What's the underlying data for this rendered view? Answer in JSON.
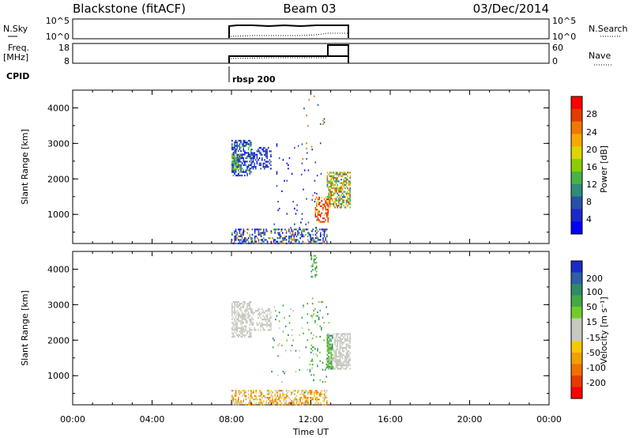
{
  "header": {
    "station": "Blackstone (fitACF)",
    "beam": "Beam 03",
    "date": "03/Dec/2014"
  },
  "noise_panel": {
    "left_label": "N.Sky",
    "right_label": "N.Search",
    "left_ticks": [
      "10^5",
      "10^0"
    ],
    "right_ticks": [
      "10^5",
      "10^0"
    ]
  },
  "freq_panel": {
    "left_label_1": "Freq.",
    "left_label_2": "[MHz]",
    "right_label": "Nave",
    "left_ticks": [
      "18",
      "8"
    ],
    "right_ticks": [
      "60",
      "0"
    ]
  },
  "cpid": {
    "label": "CPID",
    "program": "rbsp 200"
  },
  "power_panel": {
    "ylabel": "Slant Range [km]",
    "yticks": [
      "4000",
      "3000",
      "2000",
      "1000"
    ],
    "colorbar_label": "Power [dB]",
    "colorbar_ticks": [
      "28",
      "24",
      "20",
      "16",
      "12",
      "8",
      "4"
    ],
    "colorbar_colors": [
      "#ff0000",
      "#e33b00",
      "#f07800",
      "#f6a800",
      "#dcd600",
      "#8ccc00",
      "#48b248",
      "#2e8c78",
      "#2850a8",
      "#1d28c8",
      "#0000ff"
    ]
  },
  "velocity_panel": {
    "ylabel": "Slant Range [km]",
    "yticks": [
      "4000",
      "3000",
      "2000",
      "1000"
    ],
    "colorbar_label": "Velocity [m s⁻¹]",
    "colorbar_ticks": [
      "200",
      "100",
      "50",
      "15",
      "-15",
      "-50",
      "-100",
      "-200"
    ],
    "colorbar_colors": [
      "#1c2ac8",
      "#2d5ea8",
      "#2e8a6c",
      "#44a844",
      "#70cc2a",
      "#c8c8c0",
      "#c8c8c0",
      "#f6c800",
      "#f0a000",
      "#f07000",
      "#e83a00",
      "#ff0000"
    ]
  },
  "xaxis": {
    "label": "Time UT",
    "ticks": [
      "00:00",
      "04:00",
      "08:00",
      "12:00",
      "16:00",
      "20:00",
      "00:00"
    ]
  },
  "chart_data": [
    {
      "type": "heatmap",
      "title": "Power",
      "xlabel": "Time UT",
      "ylabel": "Slant Range [km]",
      "xlim": [
        0,
        24
      ],
      "ylim": [
        180,
        4500
      ],
      "colorbar": {
        "label": "Power [dB]",
        "ticks": [
          4,
          8,
          12,
          16,
          20,
          24,
          28
        ]
      },
      "regions": [
        {
          "x": [
            8.0,
            9.0
          ],
          "y": [
            2100,
            3100
          ],
          "level": "low-to-mid"
        },
        {
          "x": [
            9.0,
            10.0
          ],
          "y": [
            2100,
            2900
          ],
          "level": "low"
        },
        {
          "x": [
            8.0,
            12.8
          ],
          "y": [
            180,
            600
          ],
          "level": "low-to-mid"
        },
        {
          "x": [
            12.8,
            14.0
          ],
          "y": [
            1200,
            2200
          ],
          "level": "mid-to-high"
        },
        {
          "x": [
            12.2,
            12.8
          ],
          "y": [
            700,
            1200
          ],
          "level": "high"
        }
      ]
    },
    {
      "type": "heatmap",
      "title": "Velocity",
      "xlabel": "Time UT",
      "ylabel": "Slant Range [km]",
      "xlim": [
        0,
        24
      ],
      "ylim": [
        180,
        4500
      ],
      "colorbar": {
        "label": "Velocity [m s⁻¹]",
        "ticks": [
          -200,
          -100,
          -50,
          -15,
          15,
          50,
          100,
          200
        ]
      },
      "regions": [
        {
          "x": [
            8.0,
            10.0
          ],
          "y": [
            2100,
            3100
          ],
          "level": "near-zero (grey)"
        },
        {
          "x": [
            8.0,
            12.8
          ],
          "y": [
            180,
            600
          ],
          "level": "negative (yellow/orange)"
        },
        {
          "x": [
            12.8,
            14.0
          ],
          "y": [
            1200,
            2200
          ],
          "level": "near-zero (grey)"
        },
        {
          "x": [
            12.8,
            13.1
          ],
          "y": [
            1200,
            2200
          ],
          "level": "positive (green)"
        },
        {
          "x": [
            11.0,
            12.8
          ],
          "y": [
            800,
            4400
          ],
          "level": "positive (green)"
        }
      ]
    }
  ]
}
